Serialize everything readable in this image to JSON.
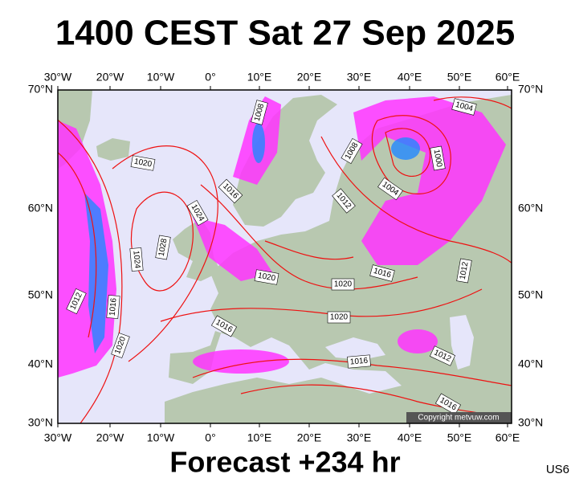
{
  "title": "1400 CEST Sat 27 Sep 2025",
  "map": {
    "lon_labels": [
      "30°W",
      "20°W",
      "10°W",
      "0°",
      "10°E",
      "20°E",
      "30°E",
      "40°E",
      "50°E",
      "60°E"
    ],
    "lat_labels": [
      "70°N",
      "60°N",
      "50°N",
      "40°N",
      "30°N"
    ],
    "isobar_labels": [
      "1008",
      "1004",
      "1020",
      "1008",
      "1000",
      "1016",
      "1004",
      "1012",
      "1024",
      "1028",
      "1024",
      "1020",
      "1020",
      "1016",
      "1012",
      "1012",
      "1016",
      "1020",
      "1016",
      "1020",
      "1016",
      "1012",
      "1016"
    ],
    "copyright": "Copyright metvuw.com"
  },
  "footer": {
    "forecast": "Forecast +234 hr",
    "code": "US6"
  }
}
